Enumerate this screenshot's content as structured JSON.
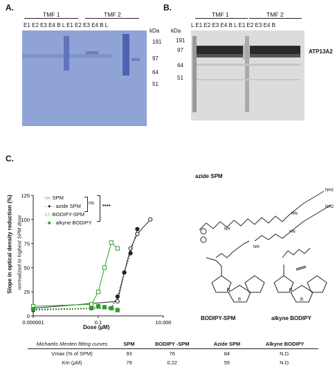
{
  "panelA": {
    "label": "A.",
    "groups": [
      "TMF 1",
      "TMF 2"
    ],
    "lanes": [
      "E1",
      "E2",
      "E3",
      "E4",
      "B",
      "L",
      "E1",
      "E2",
      "E3",
      "E4",
      "B",
      "L"
    ],
    "kda_title": "kDa",
    "kda_marks": [
      "191",
      "97",
      "64",
      "51"
    ]
  },
  "panelB": {
    "label": "B.",
    "groups": [
      "TMF 1",
      "TMF 2"
    ],
    "lanes": [
      "L",
      "E1",
      "E2",
      "E3",
      "E4",
      "B",
      "L",
      "E1",
      "E2",
      "E3",
      "E4",
      "B"
    ],
    "kda_title": "kDa",
    "kda_marks": [
      "191",
      "97",
      "64",
      "51"
    ],
    "band_label": "ATP13A2"
  },
  "panelC": {
    "label": "C.",
    "ylabel": "Slope in optical density reduction (%)",
    "ylabel2": "normalized to highest SPM dose",
    "xlabel": "Dose (µM)",
    "legend": [
      "SPM",
      "azide SPM",
      "BODIPY-SPM",
      "alkyne BODIPY"
    ],
    "sig_ns": "ns",
    "sig_star": "****",
    "chem_azide": "azide SPM",
    "chem_bodipy_spm": "BODIPY-SPM",
    "chem_alkyne": "alkyne BODIPY",
    "nh2_1": "NH2",
    "nh2_2": "NH2",
    "hn1": "HN",
    "hn2": "HN",
    "nh1": "NH",
    "nh2": "NH",
    "b_atom": "B",
    "n_atoms": "N"
  },
  "chart_data": {
    "type": "scatter",
    "xscale": "log",
    "xlim": [
      1e-06,
      10000
    ],
    "ylim": [
      0,
      125
    ],
    "xticks": [
      "0.000001",
      "0.1",
      "10,000"
    ],
    "yticks": [
      0,
      25,
      50,
      75,
      100,
      125
    ],
    "xlabel": "Dose (µM)",
    "ylabel": "Slope in optical density reduction (%)",
    "series": [
      {
        "name": "SPM",
        "color": "#222222",
        "marker": "open-circle",
        "x": [
          1e-06,
          3,
          10,
          30,
          100,
          1000
        ],
        "y": [
          8,
          15,
          45,
          70,
          85,
          100
        ]
      },
      {
        "name": "azide SPM",
        "color": "#222222",
        "marker": "filled-circle",
        "x": [
          1e-06,
          1,
          3,
          10,
          30,
          100
        ],
        "y": [
          6,
          8,
          20,
          45,
          65,
          90
        ]
      },
      {
        "name": "BODIPY-SPM",
        "color": "#2aa02a",
        "marker": "open-square",
        "x": [
          1e-06,
          0.03,
          0.1,
          0.3,
          1,
          3
        ],
        "y": [
          10,
          12,
          25,
          50,
          76,
          70
        ]
      },
      {
        "name": "alkyne BODIPY",
        "color": "#2aa02a",
        "marker": "filled-square",
        "x": [
          1e-06,
          0.03,
          0.1,
          0.3,
          1,
          3
        ],
        "y": [
          7,
          8,
          10,
          9,
          8,
          6
        ]
      }
    ]
  },
  "fit_table": {
    "header": [
      "Michaelis Menten fitting curves",
      "SPM",
      "BODIPY -SPM",
      "Azide SPM",
      "Alkyne BODIPY"
    ],
    "rows": [
      [
        "Vmax (% of SPM)",
        "93",
        "76",
        "84",
        "N.D."
      ],
      [
        "Km (µM)",
        "79",
        "0.22",
        "55",
        "N.D."
      ]
    ]
  },
  "colors": {
    "green": "#2aa02a",
    "gelA": "#8fa3d6",
    "gelB": "#dcdcdc"
  }
}
